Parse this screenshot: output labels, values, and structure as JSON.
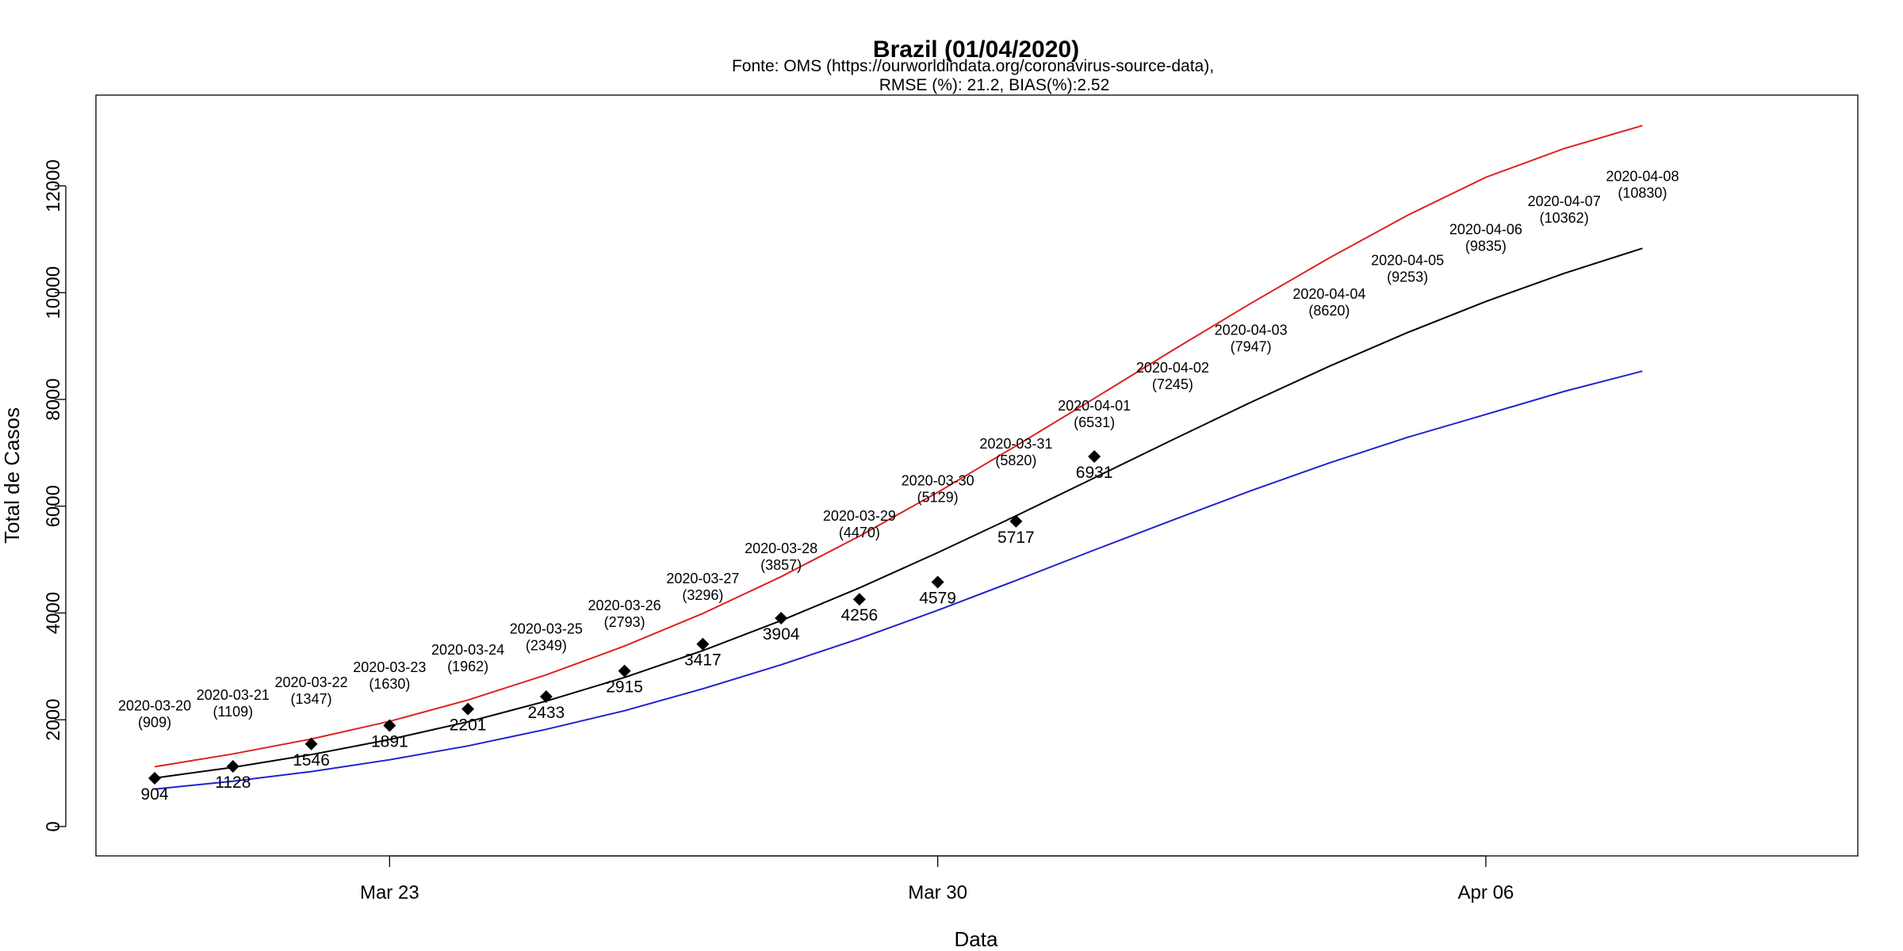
{
  "chart_data": {
    "type": "line",
    "title": "Brazil (01/04/2020)",
    "subtitle_lines": [
      "Fonte: OMS (https://ourworldindata.org/coronavirus-source-data),",
      "RMSE (%): 21.2, BIAS(%):2.52"
    ],
    "xlabel": "Data",
    "ylabel": "Total de Casos",
    "x_ticks": [
      {
        "x": "2020-03-23",
        "label": "Mar 23"
      },
      {
        "x": "2020-03-30",
        "label": "Mar 30"
      },
      {
        "x": "2020-04-06",
        "label": "Apr 06"
      }
    ],
    "y_ticks": [
      0,
      2000,
      4000,
      6000,
      8000,
      10000,
      12000
    ],
    "xlim": [
      "2020-03-19.25",
      "2020-04-10.75"
    ],
    "ylim": [
      -550,
      13700
    ],
    "grid": false,
    "legend": "none",
    "series": [
      {
        "color": "#000000",
        "x": [
          "2020-03-20",
          "2020-03-21",
          "2020-03-22",
          "2020-03-23",
          "2020-03-24",
          "2020-03-25",
          "2020-03-26",
          "2020-03-27",
          "2020-03-28",
          "2020-03-29",
          "2020-03-30",
          "2020-03-31",
          "2020-04-01",
          "2020-04-02",
          "2020-04-03",
          "2020-04-04",
          "2020-04-05",
          "2020-04-06",
          "2020-04-07",
          "2020-04-08"
        ],
        "y": [
          909,
          1109,
          1347,
          1630,
          1962,
          2349,
          2793,
          3296,
          3857,
          4470,
          5129,
          5820,
          6531,
          7245,
          7947,
          8620,
          9253,
          9835,
          10362,
          10830
        ]
      },
      {
        "color": "#dd2222",
        "x": [
          "2020-03-20",
          "2020-03-21",
          "2020-03-22",
          "2020-03-23",
          "2020-03-24",
          "2020-03-25",
          "2020-03-26",
          "2020-03-27",
          "2020-03-28",
          "2020-03-29",
          "2020-03-30",
          "2020-03-31",
          "2020-04-01",
          "2020-04-02",
          "2020-04-03",
          "2020-04-04",
          "2020-04-05",
          "2020-04-06",
          "2020-04-07",
          "2020-04-08"
        ],
        "y": [
          1120,
          1360,
          1640,
          1970,
          2370,
          2840,
          3380,
          3990,
          4680,
          5440,
          6260,
          7130,
          8020,
          8920,
          9800,
          10650,
          11450,
          12160,
          12700,
          13130
        ]
      },
      {
        "color": "#2222cc",
        "x": [
          "2020-03-20",
          "2020-03-21",
          "2020-03-22",
          "2020-03-23",
          "2020-03-24",
          "2020-03-25",
          "2020-03-26",
          "2020-03-27",
          "2020-03-28",
          "2020-03-29",
          "2020-03-30",
          "2020-03-31",
          "2020-04-01",
          "2020-04-02",
          "2020-04-03",
          "2020-04-04",
          "2020-04-05",
          "2020-04-06",
          "2020-04-07",
          "2020-04-08"
        ],
        "y": [
          700,
          850,
          1030,
          1250,
          1510,
          1820,
          2170,
          2580,
          3030,
          3520,
          4050,
          4610,
          5180,
          5740,
          6290,
          6810,
          7290,
          7720,
          8150,
          8530
        ]
      }
    ],
    "predicted_labels": [
      {
        "x": "2020-03-20",
        "date": "2020-03-20",
        "value": "(909)"
      },
      {
        "x": "2020-03-21",
        "date": "2020-03-21",
        "value": "(1109)"
      },
      {
        "x": "2020-03-22",
        "date": "2020-03-22",
        "value": "(1347)"
      },
      {
        "x": "2020-03-23",
        "date": "2020-03-23",
        "value": "(1630)"
      },
      {
        "x": "2020-03-24",
        "date": "2020-03-24",
        "value": "(1962)"
      },
      {
        "x": "2020-03-25",
        "date": "2020-03-25",
        "value": "(2349)"
      },
      {
        "x": "2020-03-26",
        "date": "2020-03-26",
        "value": "(2793)"
      },
      {
        "x": "2020-03-27",
        "date": "2020-03-27",
        "value": "(3296)"
      },
      {
        "x": "2020-03-28",
        "date": "2020-03-28",
        "value": "(3857)"
      },
      {
        "x": "2020-03-29",
        "date": "2020-03-29",
        "value": "(4470)"
      },
      {
        "x": "2020-03-30",
        "date": "2020-03-30",
        "value": "(5129)"
      },
      {
        "x": "2020-03-31",
        "date": "2020-03-31",
        "value": "(5820)"
      },
      {
        "x": "2020-04-01",
        "date": "2020-04-01",
        "value": "(6531)"
      },
      {
        "x": "2020-04-02",
        "date": "2020-04-02",
        "value": "(7245)"
      },
      {
        "x": "2020-04-03",
        "date": "2020-04-03",
        "value": "(7947)"
      },
      {
        "x": "2020-04-04",
        "date": "2020-04-04",
        "value": "(8620)"
      },
      {
        "x": "2020-04-05",
        "date": "2020-04-05",
        "value": "(9253)"
      },
      {
        "x": "2020-04-06",
        "date": "2020-04-06",
        "value": "(9835)"
      },
      {
        "x": "2020-04-07",
        "date": "2020-04-07",
        "value": "(10362)"
      },
      {
        "x": "2020-04-08",
        "date": "2020-04-08",
        "value": "(10830)"
      }
    ],
    "observed": {
      "marker": "diamond",
      "color": "#000000",
      "points": [
        {
          "x": "2020-03-20",
          "y": 904
        },
        {
          "x": "2020-03-21",
          "y": 1128
        },
        {
          "x": "2020-03-22",
          "y": 1546
        },
        {
          "x": "2020-03-23",
          "y": 1891
        },
        {
          "x": "2020-03-24",
          "y": 2201
        },
        {
          "x": "2020-03-25",
          "y": 2433
        },
        {
          "x": "2020-03-26",
          "y": 2915
        },
        {
          "x": "2020-03-27",
          "y": 3417
        },
        {
          "x": "2020-03-28",
          "y": 3904
        },
        {
          "x": "2020-03-29",
          "y": 4256
        },
        {
          "x": "2020-03-30",
          "y": 4579
        },
        {
          "x": "2020-03-31",
          "y": 5717
        },
        {
          "x": "2020-04-01",
          "y": 6931
        }
      ]
    }
  }
}
